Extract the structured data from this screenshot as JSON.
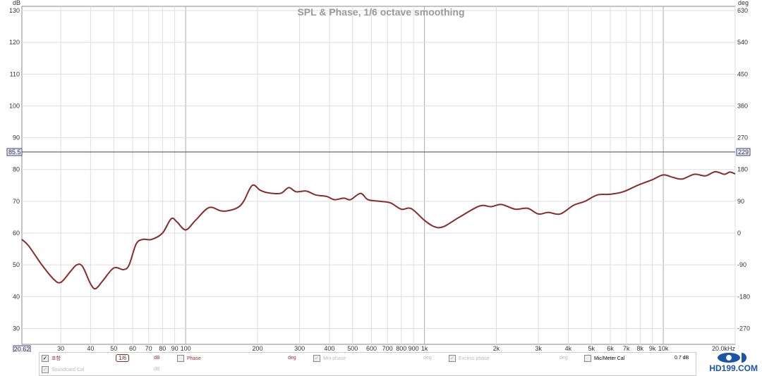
{
  "chart_data": {
    "type": "line",
    "title": "SPL & Phase, 1/6 octave smoothing",
    "ylabel": "dB",
    "y2label": "deg",
    "xunit": "Hz",
    "xscale": "log",
    "xlim": [
      20.62,
      20000
    ],
    "ylim": [
      25,
      130
    ],
    "y2_ticks": [
      {
        "db": 130,
        "label": "630"
      },
      {
        "db": 120,
        "label": "540"
      },
      {
        "db": 110,
        "label": "450"
      },
      {
        "db": 100,
        "label": "360"
      },
      {
        "db": 90,
        "label": "270"
      },
      {
        "db": 80,
        "label": "180"
      },
      {
        "db": 70,
        "label": "90"
      },
      {
        "db": 60,
        "label": "0"
      },
      {
        "db": 50,
        "label": "-90"
      },
      {
        "db": 40,
        "label": "-180"
      },
      {
        "db": 30,
        "label": "-270"
      }
    ],
    "y_ticks": [
      130,
      120,
      110,
      100,
      90,
      80,
      70,
      60,
      50,
      40,
      30
    ],
    "x_ticks": [
      {
        "v": 30,
        "l": "30"
      },
      {
        "v": 40,
        "l": "40"
      },
      {
        "v": 50,
        "l": "50"
      },
      {
        "v": 60,
        "l": "60"
      },
      {
        "v": 70,
        "l": "70"
      },
      {
        "v": 80,
        "l": "80"
      },
      {
        "v": 90,
        "l": "90"
      },
      {
        "v": 100,
        "l": "100"
      },
      {
        "v": 200,
        "l": "200"
      },
      {
        "v": 300,
        "l": "300"
      },
      {
        "v": 400,
        "l": "400"
      },
      {
        "v": 500,
        "l": "500"
      },
      {
        "v": 600,
        "l": "600"
      },
      {
        "v": 700,
        "l": "700"
      },
      {
        "v": 800,
        "l": "800"
      },
      {
        "v": 900,
        "l": "900"
      },
      {
        "v": 1000,
        "l": "1k"
      },
      {
        "v": 2000,
        "l": "2k"
      },
      {
        "v": 3000,
        "l": "3k"
      },
      {
        "v": 4000,
        "l": "4k"
      },
      {
        "v": 5000,
        "l": "5k"
      },
      {
        "v": 6000,
        "l": "6k"
      },
      {
        "v": 7000,
        "l": "7k"
      },
      {
        "v": 8000,
        "l": "8k"
      },
      {
        "v": 9000,
        "l": "9k"
      },
      {
        "v": 10000,
        "l": "10k"
      },
      {
        "v": 20000,
        "l": "20.0kHz"
      }
    ],
    "x_start_label": "20.62",
    "cursor": {
      "db": 85.5,
      "label": "85.5",
      "deg_label": "229"
    },
    "grid": true,
    "series": [
      {
        "color": "#8b2a2a",
        "x": [
          20.6,
          22,
          25,
          28,
          30,
          33,
          35,
          37,
          40,
          42,
          45,
          50,
          55,
          58,
          62,
          66,
          72,
          80,
          87,
          92,
          100,
          110,
          125,
          140,
          150,
          165,
          175,
          190,
          205,
          220,
          250,
          270,
          290,
          320,
          350,
          390,
          420,
          460,
          490,
          540,
          580,
          650,
          720,
          800,
          880,
          1000,
          1100,
          1200,
          1400,
          1700,
          1900,
          2100,
          2400,
          2700,
          3000,
          3300,
          3700,
          4200,
          4700,
          5300,
          6000,
          6800,
          7800,
          9000,
          10000,
          11000,
          12000,
          13500,
          15000,
          16500,
          18000,
          19000,
          20000
        ],
        "y": [
          58,
          56,
          50,
          45.5,
          44.5,
          48,
          50,
          49.5,
          44,
          42.5,
          45,
          49,
          48.5,
          50,
          56.5,
          58,
          58,
          60,
          64.5,
          63.5,
          61,
          64,
          68,
          67,
          67,
          68,
          70,
          75,
          73.5,
          72.7,
          72.5,
          74.3,
          73,
          73.2,
          72,
          71.5,
          70.5,
          71,
          70.5,
          72.5,
          70.5,
          70,
          69.5,
          67.5,
          67.7,
          64,
          62,
          62,
          65,
          68.5,
          68.3,
          69,
          67.5,
          67.8,
          66,
          66.5,
          66,
          68.7,
          70,
          72,
          72.2,
          73,
          75,
          76.8,
          78.3,
          77.5,
          77,
          78.5,
          78,
          79.3,
          78.5,
          79.2,
          78.6
        ]
      }
    ]
  },
  "legend": {
    "row1": {
      "label": "포함",
      "smoothing": "1/6",
      "unit1": "dB",
      "phase": "Phase",
      "unit2": "deg",
      "minphase": "Min phase",
      "unit3": "deg",
      "excess": "Excess phase",
      "unit4": "deg",
      "mic": "Mic/Meter Cal",
      "offset": "0.7 dB"
    },
    "row2": {
      "soundcard": "Soundcard Cal",
      "unit": "dB"
    }
  },
  "logo": "HD199.COM"
}
